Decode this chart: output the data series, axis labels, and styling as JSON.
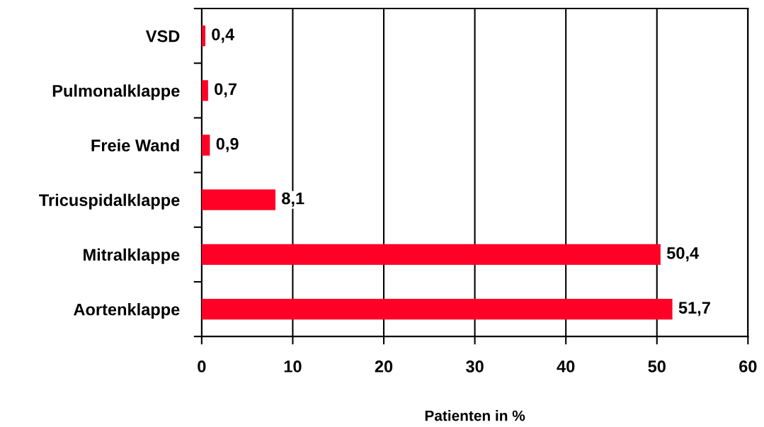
{
  "chart_data": {
    "type": "bar",
    "orientation": "horizontal",
    "xlabel": "Patienten in %",
    "categories": [
      "VSD",
      "Pulmonalklappe",
      "Freie Wand",
      "Tricuspidalklappe",
      "Mitralklappe",
      "Aortenklappe"
    ],
    "values": [
      0.4,
      0.7,
      0.9,
      8.1,
      50.4,
      51.7
    ],
    "value_labels": [
      "0,4",
      "0,7",
      "0,9",
      "8,1",
      "50,4",
      "51,7"
    ],
    "color": "#ff0027",
    "xlim": [
      0,
      60
    ],
    "xticks": [
      0,
      10,
      20,
      30,
      40,
      50,
      60
    ],
    "grid": "x",
    "legend": false
  }
}
